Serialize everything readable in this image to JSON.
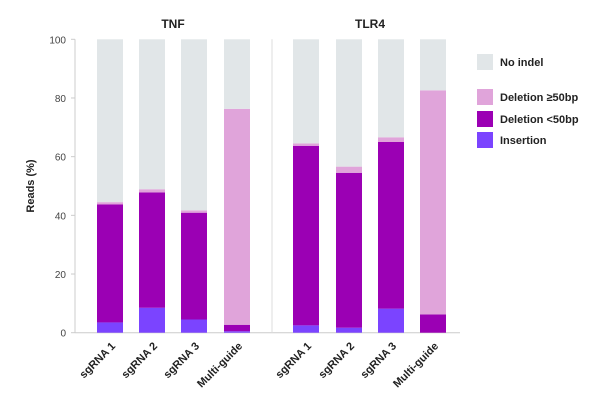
{
  "chart_data": {
    "type": "bar",
    "stacked": true,
    "ylabel": "Reads (%)",
    "ylim": [
      0,
      100
    ],
    "yticks": [
      0,
      20,
      40,
      60,
      80,
      100
    ],
    "grid": false,
    "legend_placement": "right",
    "legend": [
      "No indel",
      "Deletion ≥50bp",
      "Deletion <50bp",
      "Insertion"
    ],
    "colors": {
      "No indel": "#e1e6e8",
      "Deletion ≥50bp": "#e0a4da",
      "Deletion <50bp": "#9b00b4",
      "Insertion": "#7b44ff"
    },
    "panels": [
      {
        "title": "TNF",
        "categories": [
          "sgRNA 1",
          "sgRNA 2",
          "sgRNA 3",
          "Multi-guide"
        ],
        "series": [
          {
            "name": "Insertion",
            "values": [
              3.5,
              8.5,
              4.5,
              0.5
            ]
          },
          {
            "name": "Deletion <50bp",
            "values": [
              40.2,
              39.3,
              36.4,
              2.2
            ]
          },
          {
            "name": "Deletion ≥50bp",
            "values": [
              0.8,
              1.1,
              0.8,
              73.6
            ]
          },
          {
            "name": "No indel",
            "values": [
              55.5,
              51.1,
              58.3,
              23.7
            ]
          }
        ]
      },
      {
        "title": "TLR4",
        "categories": [
          "sgRNA 1",
          "sgRNA 2",
          "sgRNA 3",
          "Multi-guide"
        ],
        "series": [
          {
            "name": "Insertion",
            "values": [
              2.5,
              1.7,
              8.2,
              0
            ]
          },
          {
            "name": "Deletion <50bp",
            "values": [
              61.2,
              52.8,
              56.8,
              6.2
            ]
          },
          {
            "name": "Deletion ≥50bp",
            "values": [
              0.8,
              2.1,
              1.6,
              76.4
            ]
          },
          {
            "name": "No indel",
            "values": [
              35.5,
              43.4,
              33.4,
              17.4
            ]
          }
        ]
      }
    ]
  }
}
